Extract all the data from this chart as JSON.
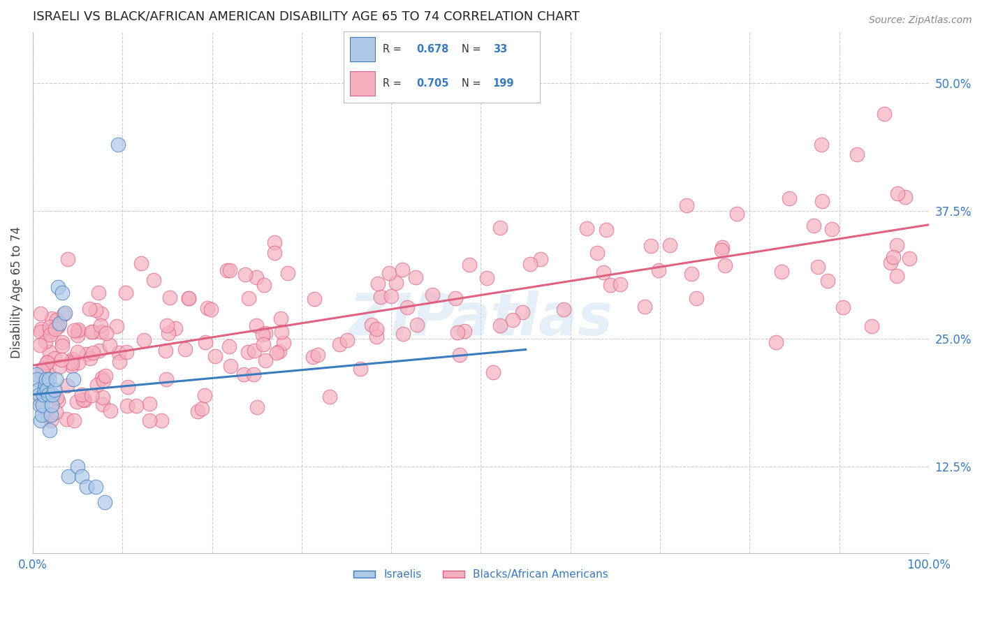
{
  "title": "ISRAELI VS BLACK/AFRICAN AMERICAN DISABILITY AGE 65 TO 74 CORRELATION CHART",
  "source": "Source: ZipAtlas.com",
  "ylabel": "Disability Age 65 to 74",
  "xlim": [
    0.0,
    1.0
  ],
  "ylim": [
    0.04,
    0.55
  ],
  "ytick_vals": [
    0.125,
    0.25,
    0.375,
    0.5
  ],
  "ytick_labels": [
    "12.5%",
    "25.0%",
    "37.5%",
    "50.0%"
  ],
  "xtick_vals": [
    0.0,
    0.1,
    0.2,
    0.3,
    0.4,
    0.5,
    0.6,
    0.7,
    0.8,
    0.9,
    1.0
  ],
  "xtick_labels": [
    "0.0%",
    "",
    "",
    "",
    "",
    "",
    "",
    "",
    "",
    "",
    "100.0%"
  ],
  "background_color": "#ffffff",
  "grid_color": "#cccccc",
  "watermark": "ZIPatlas",
  "israeli_color": "#aec8e8",
  "black_color": "#f5b0c0",
  "israeli_line_color": "#3a7abf",
  "black_line_color": "#e06080",
  "title_color": "#222222",
  "label_color": "#3a7abf",
  "israeli_R": "0.678",
  "israeli_N": "33",
  "black_R": "0.705",
  "black_N": "199"
}
